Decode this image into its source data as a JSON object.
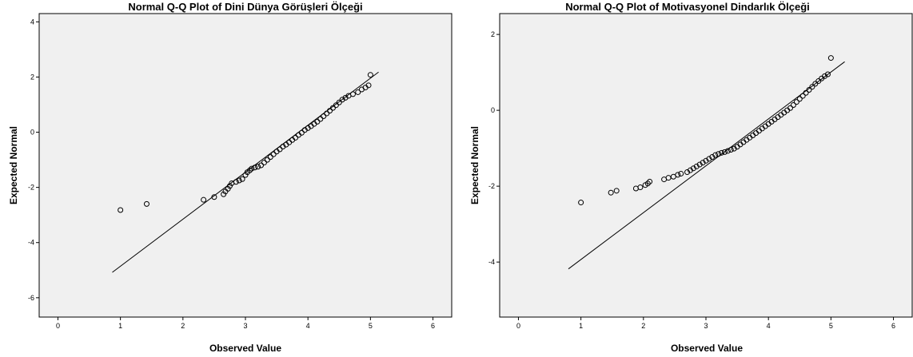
{
  "colors": {
    "plot_bg": "#f0f0f0",
    "marker": "#000000",
    "line": "#000000"
  },
  "chart_data": [
    {
      "type": "scatter",
      "title": "Normal Q-Q Plot of Dini Dünya Görüşleri Ölçeği",
      "xlabel": "Observed Value",
      "ylabel": "Expected Normal",
      "xlim": [
        -0.3,
        6.3
      ],
      "ylim": [
        -6.7,
        4.3
      ],
      "xticks": [
        "0",
        "1",
        "2",
        "3",
        "4",
        "5",
        "6"
      ],
      "yticks": [
        "-6",
        "-4",
        "-2",
        "0",
        "2",
        "4"
      ],
      "reference_line": [
        [
          0.87,
          -5.08
        ],
        [
          5.13,
          2.18
        ]
      ],
      "points": [
        [
          1.0,
          -2.82
        ],
        [
          1.42,
          -2.6
        ],
        [
          2.33,
          -2.45
        ],
        [
          2.5,
          -2.35
        ],
        [
          2.65,
          -2.25
        ],
        [
          2.68,
          -2.15
        ],
        [
          2.72,
          -2.05
        ],
        [
          2.75,
          -1.95
        ],
        [
          2.78,
          -1.85
        ],
        [
          2.85,
          -1.8
        ],
        [
          2.9,
          -1.75
        ],
        [
          2.95,
          -1.7
        ],
        [
          3.0,
          -1.55
        ],
        [
          3.03,
          -1.45
        ],
        [
          3.07,
          -1.38
        ],
        [
          3.1,
          -1.32
        ],
        [
          3.15,
          -1.28
        ],
        [
          3.2,
          -1.25
        ],
        [
          3.25,
          -1.2
        ],
        [
          3.3,
          -1.1
        ],
        [
          3.35,
          -1.0
        ],
        [
          3.4,
          -0.9
        ],
        [
          3.45,
          -0.8
        ],
        [
          3.5,
          -0.7
        ],
        [
          3.55,
          -0.62
        ],
        [
          3.6,
          -0.52
        ],
        [
          3.65,
          -0.45
        ],
        [
          3.7,
          -0.37
        ],
        [
          3.75,
          -0.28
        ],
        [
          3.8,
          -0.2
        ],
        [
          3.85,
          -0.1
        ],
        [
          3.9,
          -0.02
        ],
        [
          3.95,
          0.08
        ],
        [
          4.0,
          0.15
        ],
        [
          4.05,
          0.22
        ],
        [
          4.1,
          0.3
        ],
        [
          4.15,
          0.38
        ],
        [
          4.2,
          0.48
        ],
        [
          4.25,
          0.58
        ],
        [
          4.3,
          0.68
        ],
        [
          4.35,
          0.78
        ],
        [
          4.4,
          0.88
        ],
        [
          4.45,
          0.98
        ],
        [
          4.5,
          1.08
        ],
        [
          4.55,
          1.18
        ],
        [
          4.6,
          1.25
        ],
        [
          4.65,
          1.32
        ],
        [
          4.72,
          1.38
        ],
        [
          4.8,
          1.45
        ],
        [
          4.86,
          1.55
        ],
        [
          4.92,
          1.62
        ],
        [
          4.97,
          1.7
        ],
        [
          5.0,
          2.08
        ]
      ]
    },
    {
      "type": "scatter",
      "title": "Normal Q-Q Plot of Motivasyonel Dindarlık Ölçeği",
      "xlabel": "Observed Value",
      "ylabel": "Expected Normal",
      "xlim": [
        -0.3,
        6.3
      ],
      "ylim": [
        -5.45,
        2.55
      ],
      "xticks": [
        "0",
        "1",
        "2",
        "3",
        "4",
        "5",
        "6"
      ],
      "yticks": [
        "-4",
        "-2",
        "0",
        "2"
      ],
      "reference_line": [
        [
          0.8,
          -4.18
        ],
        [
          5.22,
          1.28
        ]
      ],
      "points": [
        [
          1.0,
          -2.43
        ],
        [
          1.48,
          -2.17
        ],
        [
          1.57,
          -2.12
        ],
        [
          1.88,
          -2.06
        ],
        [
          1.95,
          -2.03
        ],
        [
          2.03,
          -1.97
        ],
        [
          2.07,
          -1.93
        ],
        [
          2.1,
          -1.88
        ],
        [
          2.33,
          -1.82
        ],
        [
          2.4,
          -1.78
        ],
        [
          2.48,
          -1.75
        ],
        [
          2.55,
          -1.7
        ],
        [
          2.6,
          -1.67
        ],
        [
          2.7,
          -1.63
        ],
        [
          2.75,
          -1.58
        ],
        [
          2.8,
          -1.53
        ],
        [
          2.85,
          -1.48
        ],
        [
          2.9,
          -1.43
        ],
        [
          2.95,
          -1.38
        ],
        [
          3.0,
          -1.33
        ],
        [
          3.05,
          -1.28
        ],
        [
          3.1,
          -1.23
        ],
        [
          3.15,
          -1.18
        ],
        [
          3.2,
          -1.15
        ],
        [
          3.25,
          -1.12
        ],
        [
          3.3,
          -1.1
        ],
        [
          3.35,
          -1.07
        ],
        [
          3.4,
          -1.04
        ],
        [
          3.45,
          -1.01
        ],
        [
          3.5,
          -0.96
        ],
        [
          3.55,
          -0.9
        ],
        [
          3.6,
          -0.84
        ],
        [
          3.65,
          -0.78
        ],
        [
          3.7,
          -0.72
        ],
        [
          3.75,
          -0.66
        ],
        [
          3.8,
          -0.6
        ],
        [
          3.85,
          -0.54
        ],
        [
          3.9,
          -0.48
        ],
        [
          3.95,
          -0.42
        ],
        [
          4.0,
          -0.36
        ],
        [
          4.05,
          -0.3
        ],
        [
          4.1,
          -0.24
        ],
        [
          4.15,
          -0.18
        ],
        [
          4.2,
          -0.12
        ],
        [
          4.25,
          -0.06
        ],
        [
          4.3,
          0.0
        ],
        [
          4.35,
          0.06
        ],
        [
          4.4,
          0.14
        ],
        [
          4.45,
          0.22
        ],
        [
          4.5,
          0.3
        ],
        [
          4.55,
          0.38
        ],
        [
          4.6,
          0.46
        ],
        [
          4.65,
          0.54
        ],
        [
          4.7,
          0.62
        ],
        [
          4.75,
          0.7
        ],
        [
          4.8,
          0.77
        ],
        [
          4.85,
          0.84
        ],
        [
          4.9,
          0.9
        ],
        [
          4.95,
          0.95
        ],
        [
          5.0,
          1.38
        ]
      ]
    }
  ]
}
